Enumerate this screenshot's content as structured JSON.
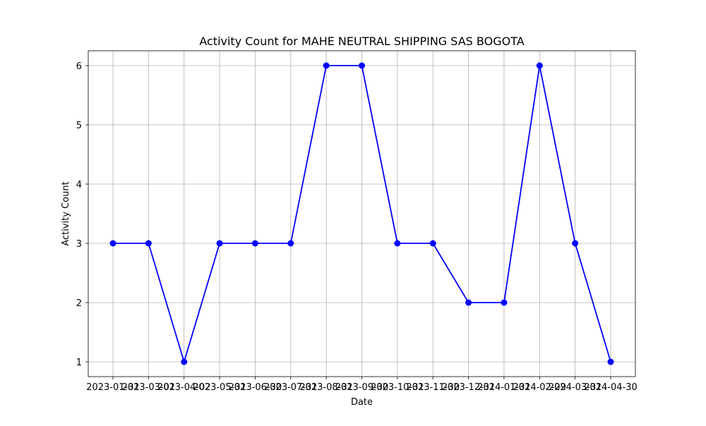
{
  "chart_data": {
    "type": "line",
    "title": "Activity Count for MAHE NEUTRAL SHIPPING SAS BOGOTA",
    "xlabel": "Date",
    "ylabel": "Activity Count",
    "x": [
      "2023-01-31",
      "2023-03-01",
      "2023-04-02",
      "2023-05-31",
      "2023-06-30",
      "2023-07-31",
      "2023-08-31",
      "2023-09-30",
      "2023-10-31",
      "2023-11-30",
      "2023-12-31",
      "2024-01-31",
      "2024-02-29",
      "2024-03-31",
      "2024-04-30"
    ],
    "series": [
      {
        "values": [
          3,
          3,
          1,
          3,
          3,
          3,
          6,
          6,
          3,
          3,
          2,
          2,
          6,
          3,
          1
        ],
        "color": "#0000ff",
        "marker": "circle"
      }
    ],
    "yticks": [
      1,
      2,
      3,
      4,
      5,
      6
    ],
    "ylim": [
      0.75,
      6.25
    ],
    "grid": true,
    "legend": "none"
  }
}
